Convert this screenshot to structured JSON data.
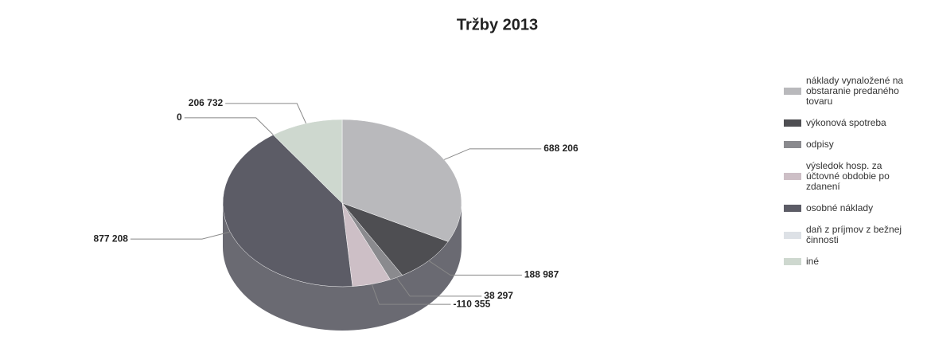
{
  "chart_data": {
    "type": "pie",
    "title": "Tržby 2013",
    "categories": [
      "náklady vynaložené na obstaranie predaného tovaru",
      "výkonová spotreba",
      "odpisy",
      "výsledok hosp. za účtovné obdobie po zdanení",
      "osobné náklady",
      "daň z príjmov z bežnej činnosti",
      "iné"
    ],
    "values": [
      688206,
      188987,
      38297,
      -110355,
      877208,
      0,
      206732
    ],
    "value_labels": [
      "688 206",
      "188 987",
      "38 297",
      "-110 355",
      "877 208",
      "0",
      "206 732"
    ],
    "colors": [
      "#b9b9bc",
      "#4e4e52",
      "#8a8a8e",
      "#cdbfc6",
      "#5c5c66",
      "#dde1e6",
      "#ced8cf"
    ],
    "legend": "right"
  }
}
